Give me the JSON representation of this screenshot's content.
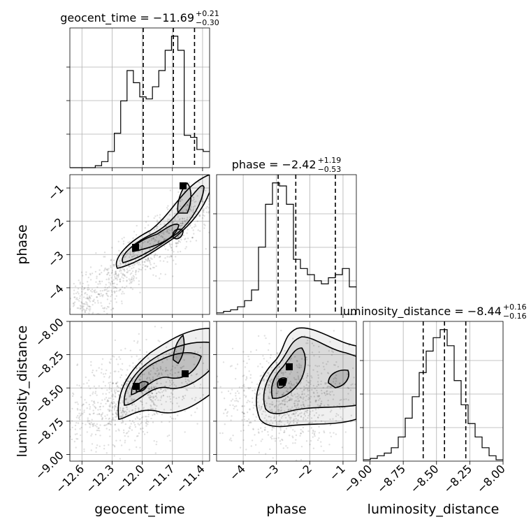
{
  "chart_data": {
    "type": "corner",
    "parameters": [
      "geocent_time",
      "phase",
      "luminosity_distance"
    ],
    "titles": [
      {
        "param": "geocent_time",
        "prefix": "geocent_time = ",
        "value": "−11.69",
        "plus": "+0.21",
        "minus": "−0.30"
      },
      {
        "param": "phase",
        "prefix": "phase = ",
        "value": "−2.42",
        "plus": "+1.19",
        "minus": "−0.53"
      },
      {
        "param": "luminosity_distance",
        "prefix": "luminosity_distance = ",
        "value": "−8.44",
        "plus": "+0.16",
        "minus": "−0.16"
      }
    ],
    "axes": {
      "geocent_time": {
        "range": [
          -12.72,
          -11.33
        ],
        "ticks": [
          -12.6,
          -12.3,
          -12.0,
          -11.7,
          -11.4
        ],
        "tick_labels": [
          "−12.6",
          "−12.3",
          "−12.0",
          "−11.7",
          "−11.4"
        ]
      },
      "phase": {
        "range": [
          -4.8,
          -0.6
        ],
        "ticks": [
          -4,
          -3,
          -2,
          -1
        ],
        "tick_labels": [
          "−4",
          "−3",
          "−2",
          "−1"
        ]
      },
      "luminosity_distance": {
        "range": [
          -9.05,
          -8.0
        ],
        "ticks": [
          -9.0,
          -8.75,
          -8.5,
          -8.25,
          -8.0
        ],
        "tick_labels": [
          "−9.00",
          "−8.75",
          "−8.50",
          "−8.25",
          "−8.00"
        ]
      }
    },
    "histograms": [
      {
        "param": "geocent_time",
        "bin_range": [
          -12.72,
          -11.33
        ],
        "counts": [
          0,
          0,
          0,
          0,
          1,
          3,
          8,
          17,
          33,
          48,
          42,
          35,
          34,
          40,
          48,
          58,
          65,
          58,
          16,
          15,
          9,
          8
        ],
        "quantiles": [
          -11.99,
          -11.69,
          -11.48
        ]
      },
      {
        "param": "phase",
        "bin_range": [
          -4.8,
          -0.6
        ],
        "counts": [
          0.5,
          1,
          1.5,
          2.5,
          4.5,
          8,
          22,
          36,
          43,
          42,
          36,
          18,
          15,
          13,
          11,
          10,
          12,
          13,
          15,
          9
        ],
        "quantiles": [
          -2.95,
          -2.42,
          -1.23
        ]
      },
      {
        "param": "luminosity_distance",
        "bin_range": [
          -9.05,
          -8.0
        ],
        "counts": [
          0.5,
          1,
          2,
          3,
          5,
          9,
          16,
          24,
          33,
          41,
          46,
          49,
          43,
          30,
          21,
          14,
          9,
          5,
          2,
          0.5
        ],
        "quantiles": [
          -8.6,
          -8.44,
          -8.28
        ]
      }
    ],
    "grid": true
  }
}
